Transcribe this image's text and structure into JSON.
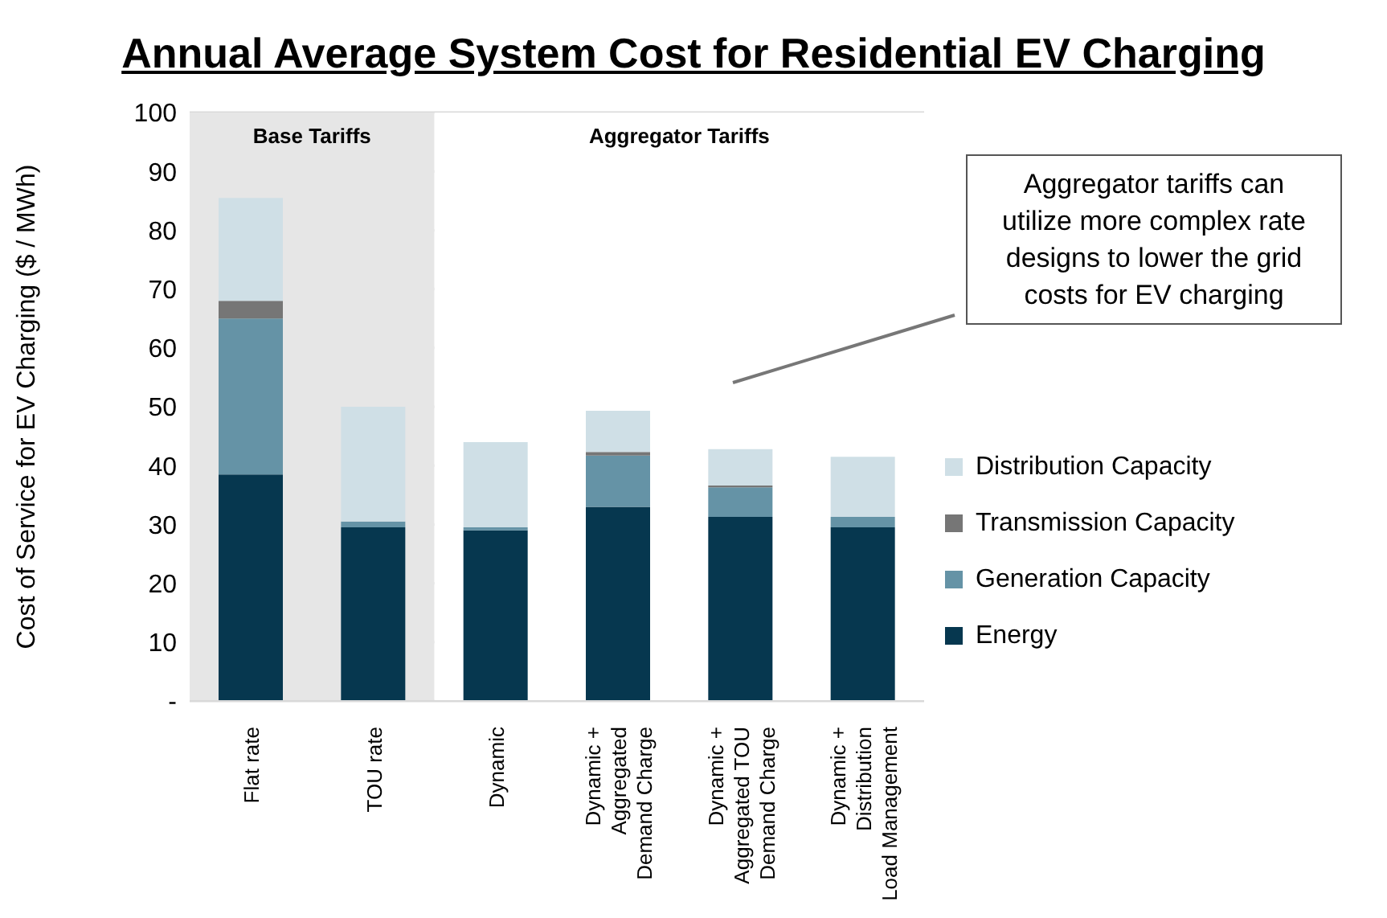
{
  "chart_data": {
    "type": "bar",
    "title": "Annual Average System Cost for Residential EV Charging",
    "ylabel": "Cost of Service for EV Charging ($ / MWh)",
    "categories": [
      "Flat rate",
      "TOU rate",
      "Dynamic",
      "Dynamic + Aggregated Demand Charge",
      "Dynamic + Aggregated TOU Demand Charge",
      "Dynamic + Distribution Load Management"
    ],
    "stacked": true,
    "series": [
      {
        "name": "Energy",
        "color": "#06374f",
        "values": [
          38.5,
          29.5,
          29,
          33,
          31.3,
          29.5
        ]
      },
      {
        "name": "Generation Capacity",
        "color": "#6593a6",
        "values": [
          26.5,
          1,
          0.5,
          8.7,
          5,
          1.8
        ]
      },
      {
        "name": "Transmission Capacity",
        "color": "#767676",
        "values": [
          3,
          0,
          0,
          0.6,
          0.3,
          0
        ]
      },
      {
        "name": "Distribution Capacity",
        "color": "#cfdfe6",
        "values": [
          17.5,
          19.5,
          14.5,
          7,
          6.2,
          10.2
        ]
      }
    ],
    "ylim": [
      0,
      100
    ],
    "yticks": [
      {
        "value": 0,
        "label": "-"
      },
      10,
      20,
      30,
      40,
      50,
      60,
      70,
      80,
      90,
      100
    ],
    "grid": "y",
    "legend": "right",
    "bands": [
      {
        "axis": "x",
        "from": "Flat rate",
        "to": "TOU rate",
        "label": "Base Tariffs",
        "color": "#e6e6e6"
      },
      {
        "axis": "x",
        "from": "Dynamic",
        "to": "Dynamic + Distribution Load Management",
        "label": "Aggregator Tariffs",
        "color": "#ffffff"
      }
    ],
    "annotations": [
      "Aggregator tariffs can utilize more complex rate designs to lower the grid costs for EV charging"
    ]
  }
}
